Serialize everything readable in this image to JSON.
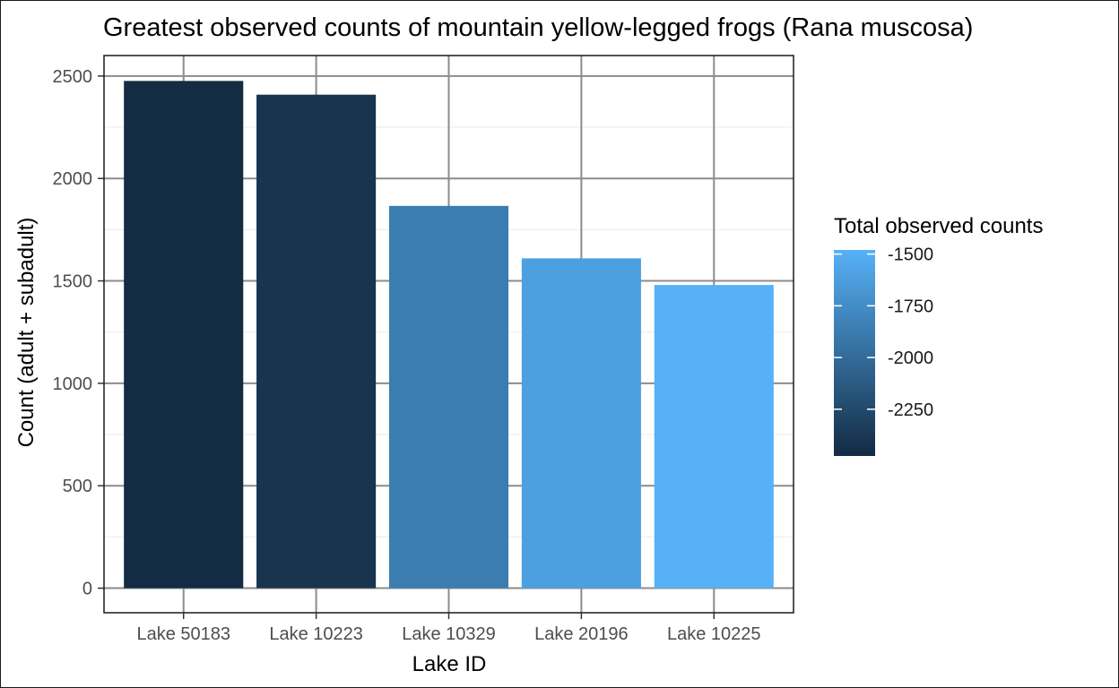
{
  "chart_data": {
    "type": "bar",
    "title": "Greatest observed counts of mountain yellow-legged frogs (Rana muscosa)",
    "xlabel": "Lake ID",
    "ylabel": "Count (adult + subadult)",
    "categories": [
      "Lake 50183",
      "Lake 10223",
      "Lake 10329",
      "Lake 20196",
      "Lake 10225"
    ],
    "values": [
      2476,
      2409,
      1866,
      1610,
      1480
    ],
    "ylim": [
      -120,
      2600
    ],
    "yticks": [
      0,
      500,
      1000,
      1500,
      2000,
      2500
    ],
    "grid": true,
    "fill_variable": "Total observed counts",
    "fill_values": [
      -2476,
      -2409,
      -1866,
      -1610,
      -1480
    ],
    "legend": {
      "title": "Total observed counts",
      "placement": "right",
      "breaks": [
        -1500,
        -1750,
        -2000,
        -2250
      ],
      "break_labels": [
        "-1500",
        "-1750",
        "-2000",
        "-2250"
      ],
      "range": [
        -2476,
        -1480
      ],
      "color_low": "#132B43",
      "color_high": "#56B1F7"
    },
    "colors": {
      "panel_border": "#1a1a1a",
      "major_grid": "#8c8c8c",
      "minor_grid": "#ebebeb"
    }
  }
}
